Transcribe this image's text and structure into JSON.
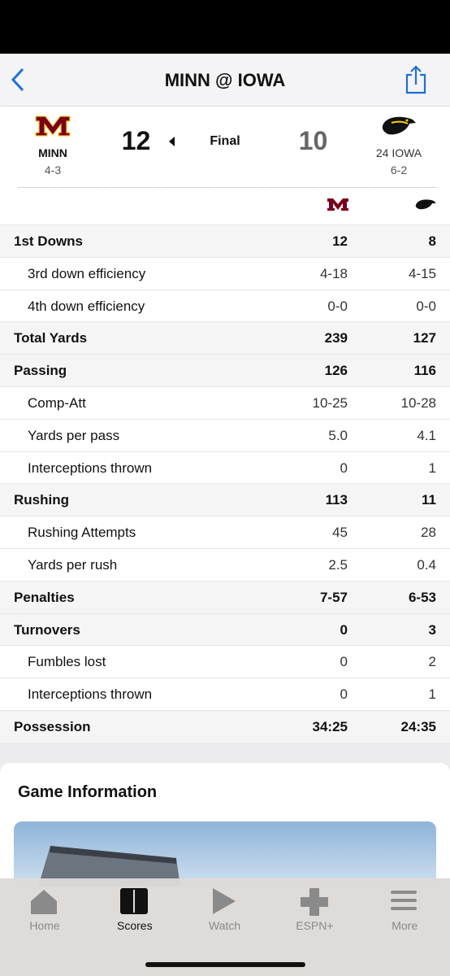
{
  "header": {
    "title": "MINN @ IOWA"
  },
  "scoreboard": {
    "status": "Final",
    "away": {
      "name": "MINN",
      "record": "4-3",
      "score": 12
    },
    "home": {
      "name": "24 IOWA",
      "record": "6-2",
      "score": 10
    }
  },
  "stats": [
    {
      "label": "1st Downs",
      "away": "12",
      "home": "8",
      "details": [
        {
          "label": "3rd down efficiency",
          "away": "4-18",
          "home": "4-15"
        },
        {
          "label": "4th down efficiency",
          "away": "0-0",
          "home": "0-0"
        }
      ]
    },
    {
      "label": "Total Yards",
      "away": "239",
      "home": "127",
      "details": []
    },
    {
      "label": "Passing",
      "away": "126",
      "home": "116",
      "details": [
        {
          "label": "Comp-Att",
          "away": "10-25",
          "home": "10-28"
        },
        {
          "label": "Yards per pass",
          "away": "5.0",
          "home": "4.1"
        },
        {
          "label": "Interceptions thrown",
          "away": "0",
          "home": "1"
        }
      ]
    },
    {
      "label": "Rushing",
      "away": "113",
      "home": "11",
      "details": [
        {
          "label": "Rushing Attempts",
          "away": "45",
          "home": "28"
        },
        {
          "label": "Yards per rush",
          "away": "2.5",
          "home": "0.4"
        }
      ]
    },
    {
      "label": "Penalties",
      "away": "7-57",
      "home": "6-53",
      "details": []
    },
    {
      "label": "Turnovers",
      "away": "0",
      "home": "3",
      "details": [
        {
          "label": "Fumbles lost",
          "away": "0",
          "home": "2"
        },
        {
          "label": "Interceptions thrown",
          "away": "0",
          "home": "1"
        }
      ]
    },
    {
      "label": "Possession",
      "away": "34:25",
      "home": "24:35",
      "details": []
    }
  ],
  "game_info": {
    "title": "Game Information"
  },
  "tabs": [
    "Home",
    "Scores",
    "Watch",
    "ESPN+",
    "More"
  ]
}
